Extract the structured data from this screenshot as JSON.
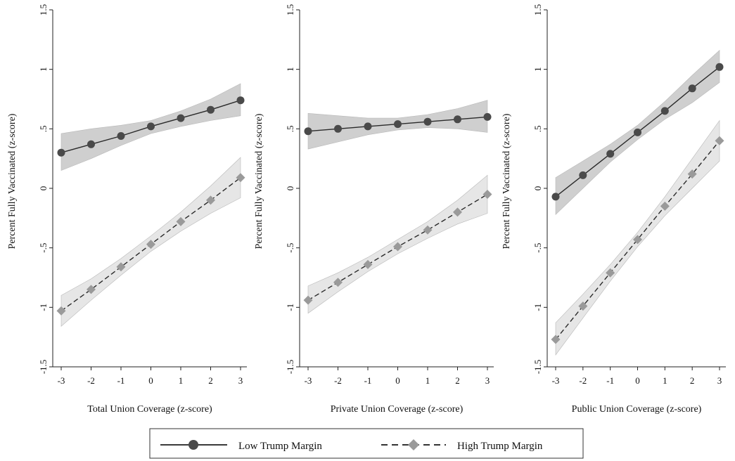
{
  "chart_data": [
    {
      "type": "line",
      "xlabel": "Total Union Coverage (z-score)",
      "ylabel": "Percent Fully Vaccinated (z-score)",
      "x": [
        -3,
        -2,
        -1,
        0,
        1,
        2,
        3
      ],
      "xlim": [
        -3,
        3
      ],
      "ylim": [
        -1.5,
        1.5
      ],
      "xticks": [
        "-3",
        "-2",
        "-1",
        "0",
        "1",
        "2",
        "3"
      ],
      "yticks": [
        {
          "value": -1.5,
          "label": "-1.5"
        },
        {
          "value": -1,
          "label": "-1"
        },
        {
          "value": -0.5,
          "label": "-.5"
        },
        {
          "value": 0,
          "label": "0"
        },
        {
          "value": 0.5,
          "label": ".5"
        },
        {
          "value": 1,
          "label": "1"
        },
        {
          "value": 1.5,
          "label": "1.5"
        }
      ],
      "series": [
        {
          "name": "Low Trump Margin",
          "style": "solid",
          "marker": "circle",
          "color": "#3a3a3a",
          "band_color": "#cfcfcf",
          "values": [
            0.3,
            0.37,
            0.44,
            0.52,
            0.59,
            0.66,
            0.74
          ],
          "ci_low": [
            0.15,
            0.25,
            0.36,
            0.46,
            0.52,
            0.57,
            0.61
          ],
          "ci_high": [
            0.46,
            0.5,
            0.53,
            0.57,
            0.65,
            0.75,
            0.88
          ]
        },
        {
          "name": "High Trump Margin",
          "style": "dashed",
          "marker": "diamond",
          "color": "#9a9a9a",
          "band_color": "#e6e6e6",
          "values": [
            -1.03,
            -0.85,
            -0.66,
            -0.47,
            -0.28,
            -0.1,
            0.09
          ],
          "ci_low": [
            -1.16,
            -0.94,
            -0.73,
            -0.53,
            -0.36,
            -0.21,
            -0.08
          ],
          "ci_high": [
            -0.9,
            -0.76,
            -0.59,
            -0.4,
            -0.2,
            0.02,
            0.26
          ]
        }
      ]
    },
    {
      "type": "line",
      "xlabel": "Private Union Coverage (z-score)",
      "ylabel": "Percent Fully Vaccinated (z-score)",
      "x": [
        -3,
        -2,
        -1,
        0,
        1,
        2,
        3
      ],
      "xlim": [
        -3,
        3
      ],
      "ylim": [
        -1.5,
        1.5
      ],
      "xticks": [
        "-3",
        "-2",
        "-1",
        "0",
        "1",
        "2",
        "3"
      ],
      "yticks": [
        {
          "value": -1.5,
          "label": "-1.5"
        },
        {
          "value": -1,
          "label": "-1"
        },
        {
          "value": -0.5,
          "label": "-.5"
        },
        {
          "value": 0,
          "label": "0"
        },
        {
          "value": 0.5,
          "label": ".5"
        },
        {
          "value": 1,
          "label": "1"
        },
        {
          "value": 1.5,
          "label": "1.5"
        }
      ],
      "series": [
        {
          "name": "Low Trump Margin",
          "style": "solid",
          "marker": "circle",
          "color": "#3a3a3a",
          "band_color": "#cfcfcf",
          "values": [
            0.48,
            0.5,
            0.52,
            0.54,
            0.56,
            0.58,
            0.6
          ],
          "ci_low": [
            0.33,
            0.39,
            0.45,
            0.49,
            0.51,
            0.5,
            0.47
          ],
          "ci_high": [
            0.63,
            0.61,
            0.59,
            0.59,
            0.62,
            0.67,
            0.74
          ]
        },
        {
          "name": "High Trump Margin",
          "style": "dashed",
          "marker": "diamond",
          "color": "#9a9a9a",
          "band_color": "#e6e6e6",
          "values": [
            -0.94,
            -0.79,
            -0.64,
            -0.49,
            -0.35,
            -0.2,
            -0.05
          ],
          "ci_low": [
            -1.05,
            -0.87,
            -0.7,
            -0.55,
            -0.42,
            -0.3,
            -0.21
          ],
          "ci_high": [
            -0.82,
            -0.71,
            -0.58,
            -0.43,
            -0.28,
            -0.1,
            0.11
          ]
        }
      ]
    },
    {
      "type": "line",
      "xlabel": "Public Union Coverage (z-score)",
      "ylabel": "Percent Fully Vaccinated (z-score)",
      "x": [
        -3,
        -2,
        -1,
        0,
        1,
        2,
        3
      ],
      "xlim": [
        -3,
        3
      ],
      "ylim": [
        -1.5,
        1.5
      ],
      "xticks": [
        "-3",
        "-2",
        "-1",
        "0",
        "1",
        "2",
        "3"
      ],
      "yticks": [
        {
          "value": -1.5,
          "label": "-1.5"
        },
        {
          "value": -1,
          "label": "-1"
        },
        {
          "value": -0.5,
          "label": "-.5"
        },
        {
          "value": 0,
          "label": "0"
        },
        {
          "value": 0.5,
          "label": ".5"
        },
        {
          "value": 1,
          "label": "1"
        },
        {
          "value": 1.5,
          "label": "1.5"
        }
      ],
      "series": [
        {
          "name": "Low Trump Margin",
          "style": "solid",
          "marker": "circle",
          "color": "#3a3a3a",
          "band_color": "#cfcfcf",
          "values": [
            -0.07,
            0.11,
            0.29,
            0.47,
            0.65,
            0.84,
            1.02
          ],
          "ci_low": [
            -0.22,
            0.0,
            0.22,
            0.41,
            0.58,
            0.72,
            0.89
          ],
          "ci_high": [
            0.09,
            0.23,
            0.37,
            0.53,
            0.73,
            0.95,
            1.16
          ]
        },
        {
          "name": "High Trump Margin",
          "style": "dashed",
          "marker": "diamond",
          "color": "#9a9a9a",
          "band_color": "#e6e6e6",
          "values": [
            -1.27,
            -0.99,
            -0.71,
            -0.43,
            -0.15,
            0.12,
            0.4
          ],
          "ci_low": [
            -1.4,
            -1.09,
            -0.78,
            -0.49,
            -0.23,
            0.0,
            0.23
          ],
          "ci_high": [
            -1.13,
            -0.89,
            -0.64,
            -0.37,
            -0.07,
            0.25,
            0.57
          ]
        }
      ]
    }
  ],
  "legend": {
    "items": [
      {
        "label": "Low Trump Margin",
        "style": "solid",
        "marker": "circle",
        "color": "#3a3a3a"
      },
      {
        "label": "High Trump Margin",
        "style": "dashed",
        "marker": "diamond",
        "color": "#9a9a9a"
      }
    ]
  }
}
